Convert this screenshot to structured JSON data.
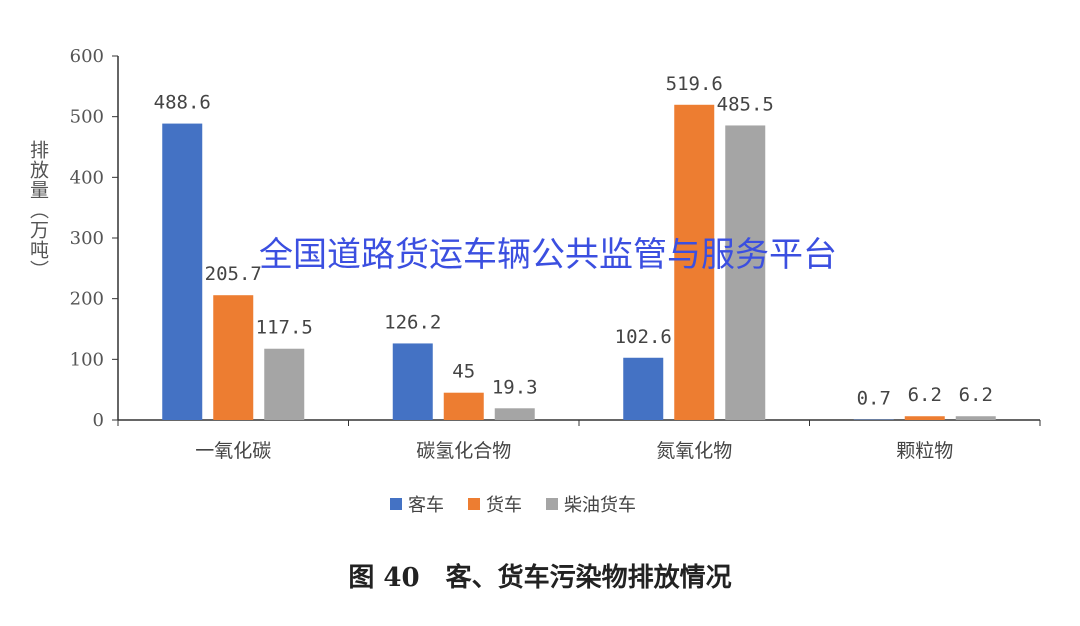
{
  "chart_data": {
    "type": "bar",
    "title": "",
    "caption": "图 40　客、货车污染物排放情况",
    "ylabel": "排放量（万吨）",
    "xlabel": "",
    "ylim": [
      0,
      600
    ],
    "yticks": [
      0,
      100,
      200,
      300,
      400,
      500,
      600
    ],
    "categories": [
      "一氧化碳",
      "碳氢化合物",
      "氮氧化物",
      "颗粒物"
    ],
    "series": [
      {
        "name": "客车",
        "color": "#4472c4",
        "values": [
          488.6,
          126.2,
          102.6,
          0.7
        ]
      },
      {
        "name": "货车",
        "color": "#ed7d31",
        "values": [
          205.7,
          45,
          519.6,
          6.2
        ]
      },
      {
        "name": "柴油货车",
        "color": "#a5a5a5",
        "values": [
          117.5,
          19.3,
          485.5,
          6.2
        ]
      }
    ],
    "legend_position": "bottom",
    "grid": false,
    "watermark": "全国道路货运车辆公共监管与服务平台"
  }
}
